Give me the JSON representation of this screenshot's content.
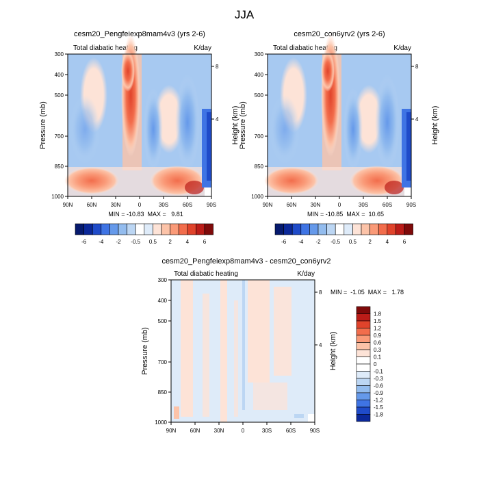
{
  "figure": {
    "title": "JJA"
  },
  "colors": {
    "warm": [
      "#fde3d7",
      "#fcc3a8",
      "#fa9a78",
      "#f26d4c",
      "#e0432b",
      "#bb1c18",
      "#7f0a0a"
    ],
    "cool": [
      "#deebf9",
      "#bcd6f3",
      "#93bcee",
      "#6599ea",
      "#3f74e4",
      "#1f4bc9",
      "#0b2899",
      "#061a6e"
    ]
  },
  "chart_data": [
    {
      "type": "heatmap",
      "title": "cesm20_Pengfeiexp8mam4v3 (yrs 2-6)",
      "left_label": "Total diabatic heating",
      "units": "K/day",
      "ylabel": "Pressure (mb)",
      "y2label": "Height (km)",
      "xticks": [
        "90N",
        "60N",
        "30N",
        "0",
        "30S",
        "60S",
        "90S"
      ],
      "yticks": [
        "300",
        "400",
        "500",
        "700",
        "850",
        "1000"
      ],
      "y2ticks": [
        "8",
        "4"
      ],
      "min_max": "MIN = -10.83  MAX =   9.81",
      "colorbar_labels": [
        "-6",
        "-4",
        "-2",
        "-0.5",
        "0.5",
        "2",
        "4",
        "6"
      ],
      "ylim": [
        1000,
        300
      ]
    },
    {
      "type": "heatmap",
      "title": "cesm20_con6yrv2 (yrs 2-6)",
      "left_label": "Total diabatic heating",
      "units": "K/day",
      "ylabel": "Pressure (mb)",
      "y2label": "Height (km)",
      "xticks": [
        "90N",
        "60N",
        "30N",
        "0",
        "30S",
        "60S",
        "90S"
      ],
      "yticks": [
        "300",
        "400",
        "500",
        "700",
        "850",
        "1000"
      ],
      "y2ticks": [
        "8",
        "4"
      ],
      "min_max": "MIN = -10.85  MAX =  10.65",
      "colorbar_labels": [
        "-6",
        "-4",
        "-2",
        "-0.5",
        "0.5",
        "2",
        "4",
        "6"
      ],
      "ylim": [
        1000,
        300
      ]
    },
    {
      "type": "heatmap",
      "title": "cesm20_Pengfeiexp8mam4v3 - cesm20_con6yrv2",
      "left_label": "Total diabatic heating",
      "units": "K/day",
      "ylabel": "Pressure (mb)",
      "y2label": "Height (km)",
      "xticks": [
        "90N",
        "60N",
        "30N",
        "0",
        "30S",
        "60S",
        "90S"
      ],
      "yticks": [
        "300",
        "400",
        "500",
        "700",
        "850",
        "1000"
      ],
      "y2ticks": [
        "8",
        "4"
      ],
      "min_max": "MIN =  -1.05  MAX =   1.78",
      "colorbar_labels": [
        "1.8",
        "1.5",
        "1.2",
        "0.9",
        "0.6",
        "0.3",
        "0.1",
        "0",
        "-0.1",
        "-0.3",
        "-0.6",
        "-0.9",
        "-1.2",
        "-1.5",
        "-1.8"
      ],
      "ylim": [
        1000,
        300
      ]
    }
  ]
}
